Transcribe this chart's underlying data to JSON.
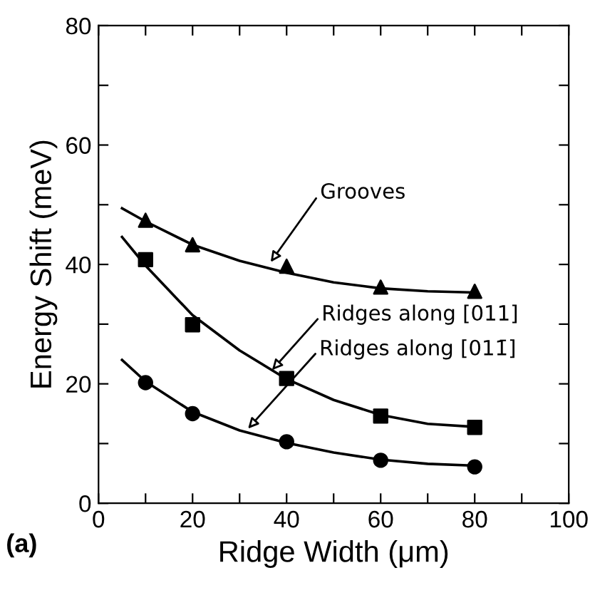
{
  "chart_data": {
    "type": "scatter",
    "xlabel": "Ridge Width (μm)",
    "ylabel": "Energy Shift (meV)",
    "xlim": [
      0,
      100
    ],
    "ylim": [
      0,
      80
    ],
    "xticks": [
      0,
      {
        "value": 10,
        "label": null
      },
      20,
      {
        "value": 30,
        "label": null
      },
      40,
      {
        "value": 50,
        "label": null
      },
      60,
      {
        "value": 70,
        "label": null
      },
      80,
      {
        "value": 90,
        "label": null
      },
      100
    ],
    "yticks": [
      0,
      {
        "value": 10,
        "label": null
      },
      20,
      {
        "value": 30,
        "label": null
      },
      40,
      {
        "value": 50,
        "label": null
      },
      60,
      {
        "value": 70,
        "label": null
      },
      80
    ],
    "grid": false,
    "legend": false,
    "series": [
      {
        "marker": "triangle",
        "color": "#000000",
        "x": [
          10,
          20,
          40,
          60,
          80
        ],
        "values": [
          47.4,
          43.3,
          39.7,
          36.2,
          35.5
        ]
      },
      {
        "marker": "square",
        "color": "#000000",
        "x": [
          10,
          20,
          40,
          60,
          80
        ],
        "values": [
          40.8,
          29.9,
          20.9,
          14.6,
          12.7
        ]
      },
      {
        "marker": "circle",
        "color": "#000000",
        "x": [
          10,
          20,
          40,
          60,
          80
        ],
        "values": [
          20.2,
          15.0,
          10.3,
          7.2,
          6.1
        ]
      },
      {
        "type": "line",
        "color": "#000000",
        "x": [
          5,
          10,
          20,
          30,
          40,
          50,
          60,
          70,
          80
        ],
        "values": [
          49.4,
          47.2,
          43.3,
          40.6,
          38.6,
          37.0,
          36.0,
          35.5,
          35.3
        ]
      },
      {
        "type": "line",
        "color": "#000000",
        "x": [
          5,
          10,
          20,
          30,
          40,
          50,
          60,
          70,
          80
        ],
        "values": [
          44.6,
          39.8,
          31.5,
          25.6,
          20.8,
          17.3,
          14.8,
          13.3,
          12.8
        ]
      },
      {
        "type": "line",
        "color": "#000000",
        "x": [
          5,
          10,
          20,
          30,
          40,
          50,
          60,
          70,
          80
        ],
        "values": [
          24.0,
          20.4,
          15.3,
          12.2,
          10.1,
          8.5,
          7.3,
          6.6,
          6.3
        ]
      }
    ],
    "annotations": [
      {
        "text": "Grooves",
        "x": 36.6,
        "y": 40.4
      },
      {
        "text": "Ridges along [011]",
        "x": 36.9,
        "y": 22.3
      },
      {
        "text": "Ridges along [011̄]",
        "x": 31.8,
        "y": 12.5
      },
      "(a)"
    ]
  }
}
